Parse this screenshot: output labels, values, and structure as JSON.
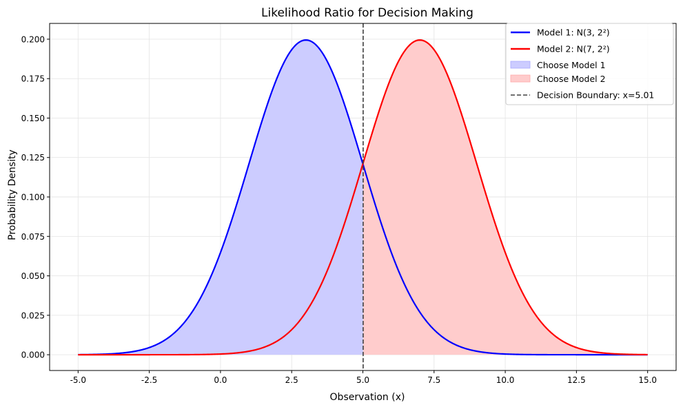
{
  "chart_data": {
    "type": "line",
    "title": "Likelihood Ratio for Decision Making",
    "xlabel": "Observation (x)",
    "ylabel": "Probability Density",
    "xlim": [
      -6.0,
      16.0
    ],
    "ylim": [
      -0.01,
      0.21
    ],
    "x_ticks": [
      "-5.0",
      "-2.5",
      "0.0",
      "2.5",
      "5.0",
      "7.5",
      "10.0",
      "12.5",
      "15.0"
    ],
    "y_ticks": [
      "0.000",
      "0.025",
      "0.050",
      "0.075",
      "0.100",
      "0.125",
      "0.150",
      "0.175",
      "0.200"
    ],
    "x_tick_values": [
      -5,
      -2.5,
      0,
      2.5,
      5,
      7.5,
      10,
      12.5,
      15
    ],
    "y_tick_values": [
      0,
      0.025,
      0.05,
      0.075,
      0.1,
      0.125,
      0.15,
      0.175,
      0.2
    ],
    "grid": true,
    "legend_position": "top-right",
    "x_range": [
      -5,
      15
    ],
    "series": [
      {
        "name": "Model 1: N(3, 2²)",
        "mean": 3,
        "std": 2,
        "color": "#0000ff"
      },
      {
        "name": "Model 2: N(7, 2²)",
        "mean": 7,
        "std": 2,
        "color": "#ff0000"
      }
    ],
    "regions": [
      {
        "name": "Choose Model 1",
        "x_range": [
          -5,
          5.01
        ],
        "under": "Model 1",
        "color": "#ccccff"
      },
      {
        "name": "Choose Model 2",
        "x_range": [
          5.01,
          15
        ],
        "under": "Model 2",
        "color": "#ffcccc"
      }
    ],
    "boundary": {
      "name": "Decision Boundary: x=5.01",
      "x": 5.01,
      "color": "#404040"
    }
  }
}
